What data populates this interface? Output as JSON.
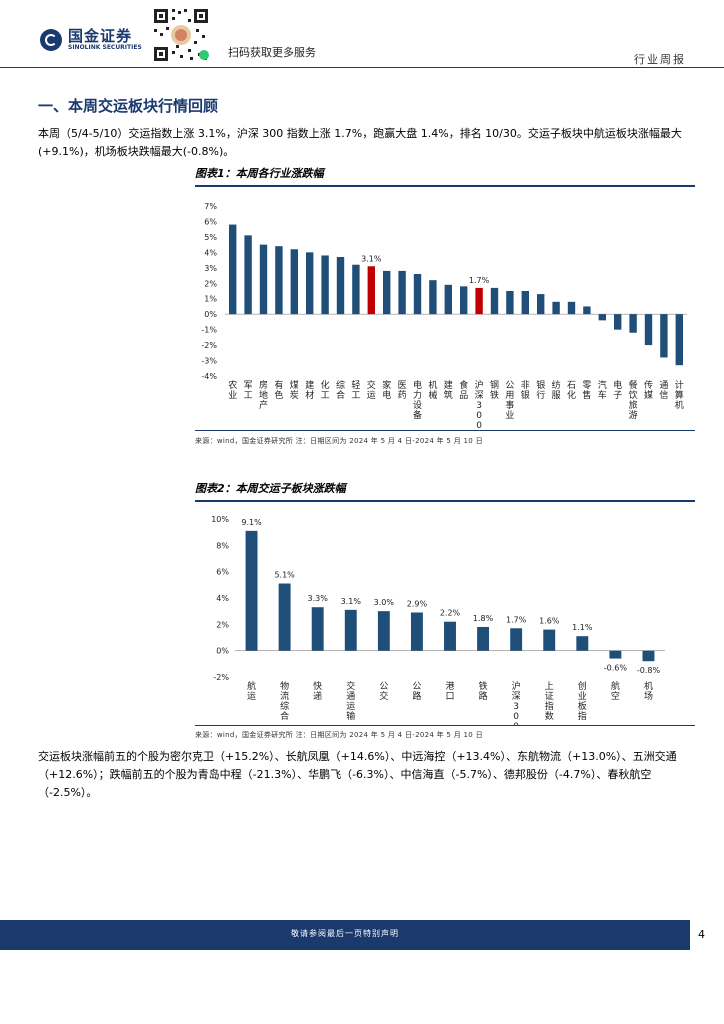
{
  "header": {
    "logo_cn": "国金证券",
    "logo_en": "SINOLINK SECURITIES",
    "scan_text": "扫码获取更多服务",
    "report_type": "行业周报"
  },
  "section": {
    "title": "一、本周交运板块行情回顾",
    "para1": "本周（5/4-5/10）交运指数上涨 3.1%，沪深 300 指数上涨 1.7%，跑赢大盘 1.4%，排名 10/30。交运子板块中航运板块涨幅最大(+9.1%)，机场板块跌幅最大(-0.8%)。",
    "para2": "交运板块涨幅前五的个股为密尔克卫（+15.2%）、长航凤凰（+14.6%）、中远海控（+13.4%）、东航物流（+13.0%）、五洲交通（+12.6%）；跌幅前五的个股为青岛中程（-21.3%）、华鹏飞（-6.3%）、中信海直（-5.7%）、德邦股份（-4.7%）、春秋航空（-2.5%）。"
  },
  "figure1": {
    "title": "图表1：本周各行业涨跌幅",
    "source": "来源：wind，国金证券研究所    注：日期区间为 2024 年 5 月 4 日-2024 年 5 月 10 日"
  },
  "figure2": {
    "title": "图表2：本周交运子板块涨跌幅",
    "source": "来源：wind，国金证券研究所    注：日期区间为 2024 年 5 月 4 日-2024 年 5 月 10 日"
  },
  "chart_data": [
    {
      "type": "bar",
      "title": "本周各行业涨跌幅",
      "ylim": [
        -4,
        7
      ],
      "yticks": [
        "7%",
        "6%",
        "5%",
        "4%",
        "3%",
        "2%",
        "1%",
        "0%",
        "-1%",
        "-2%",
        "-3%",
        "-4%"
      ],
      "categories": [
        "农业",
        "军工",
        "房地产",
        "有色",
        "煤炭",
        "建材",
        "化工",
        "综合",
        "轻工",
        "交运",
        "家电",
        "医药",
        "电力设备",
        "机械",
        "建筑",
        "食品",
        "沪深300",
        "钢铁",
        "公用事业",
        "非银",
        "银行",
        "纺服",
        "石化",
        "零售",
        "汽车",
        "电子",
        "餐饮旅游",
        "传媒",
        "通信",
        "计算机"
      ],
      "values": [
        5.8,
        5.1,
        4.5,
        4.4,
        4.2,
        4.0,
        3.8,
        3.7,
        3.2,
        3.1,
        2.8,
        2.8,
        2.6,
        2.2,
        1.9,
        1.8,
        1.7,
        1.7,
        1.5,
        1.5,
        1.3,
        0.8,
        0.8,
        0.5,
        -0.4,
        -1.0,
        -1.2,
        -2.0,
        -2.8,
        -3.3
      ],
      "highlight": [
        "交运",
        "沪深300"
      ],
      "data_labels": {
        "交运": "3.1%",
        "沪深300": "1.7%"
      },
      "colors": {
        "bar": "#1f4e79",
        "highlight": "#c00000"
      }
    },
    {
      "type": "bar",
      "title": "本周交运子板块涨跌幅",
      "ylim": [
        -2,
        10
      ],
      "yticks": [
        "10%",
        "8%",
        "6%",
        "4%",
        "2%",
        "0%",
        "-2%"
      ],
      "categories": [
        "航运",
        "物流综合",
        "快递",
        "交通运输",
        "公交",
        "公路",
        "港口",
        "铁路",
        "沪深300",
        "上证指数",
        "创业板指",
        "航空",
        "机场"
      ],
      "values": [
        9.1,
        5.1,
        3.3,
        3.1,
        3.0,
        2.9,
        2.2,
        1.8,
        1.7,
        1.6,
        1.1,
        -0.6,
        -0.8
      ],
      "labels": [
        "9.1%",
        "5.1%",
        "3.3%",
        "3.1%",
        "3.0%",
        "2.9%",
        "2.2%",
        "1.8%",
        "1.7%",
        "1.6%",
        "1.1%",
        "-0.6%",
        "-0.8%"
      ],
      "colors": {
        "bar": "#1f4e79"
      }
    }
  ],
  "footer": {
    "disclaimer": "敬请参阅最后一页特别声明",
    "page": "4"
  }
}
